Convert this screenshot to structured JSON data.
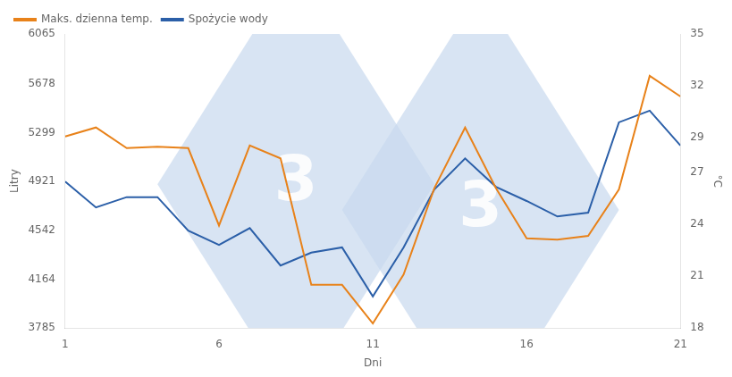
{
  "chart_data": {
    "type": "line",
    "x": [
      1,
      2,
      3,
      4,
      5,
      6,
      7,
      8,
      9,
      10,
      11,
      12,
      13,
      14,
      15,
      16,
      17,
      18,
      19,
      20,
      21
    ],
    "series": [
      {
        "name": "Maks. dzienna temp.",
        "color": "#E8821A",
        "values": [
          5270,
          5340,
          5180,
          5190,
          5180,
          4580,
          5200,
          5100,
          4120,
          4120,
          3820,
          4200,
          4870,
          5340,
          4870,
          4480,
          4470,
          4500,
          4860,
          5740,
          5580
        ]
      },
      {
        "name": "Spożycie wody",
        "color": "#2B5FA8",
        "values": [
          4921,
          4720,
          4800,
          4800,
          4540,
          4430,
          4560,
          4270,
          4370,
          4410,
          4030,
          4410,
          4860,
          5100,
          4880,
          4770,
          4650,
          4680,
          5380,
          5470,
          5200
        ]
      }
    ],
    "xlabel": "Dni",
    "ylabel": "Litry",
    "y2label": "°C",
    "xlim": [
      1,
      21
    ],
    "xticks": [
      1,
      6,
      11,
      16,
      21
    ],
    "ylim": [
      3785,
      6065
    ],
    "yticks": [
      3785,
      4164,
      4542,
      4921,
      5299,
      5678,
      6065
    ],
    "y2lim": [
      18,
      35
    ],
    "y2ticks": [
      18,
      21,
      24,
      27,
      29,
      32,
      35
    ],
    "grid": false,
    "legend": "upper left",
    "annotations": [
      {
        "text": "3",
        "x": 8.5,
        "y": 4900,
        "color": "#C8D8EE"
      },
      {
        "text": "3",
        "x": 14.5,
        "y": 4700,
        "color": "#C8D8EE"
      }
    ]
  }
}
